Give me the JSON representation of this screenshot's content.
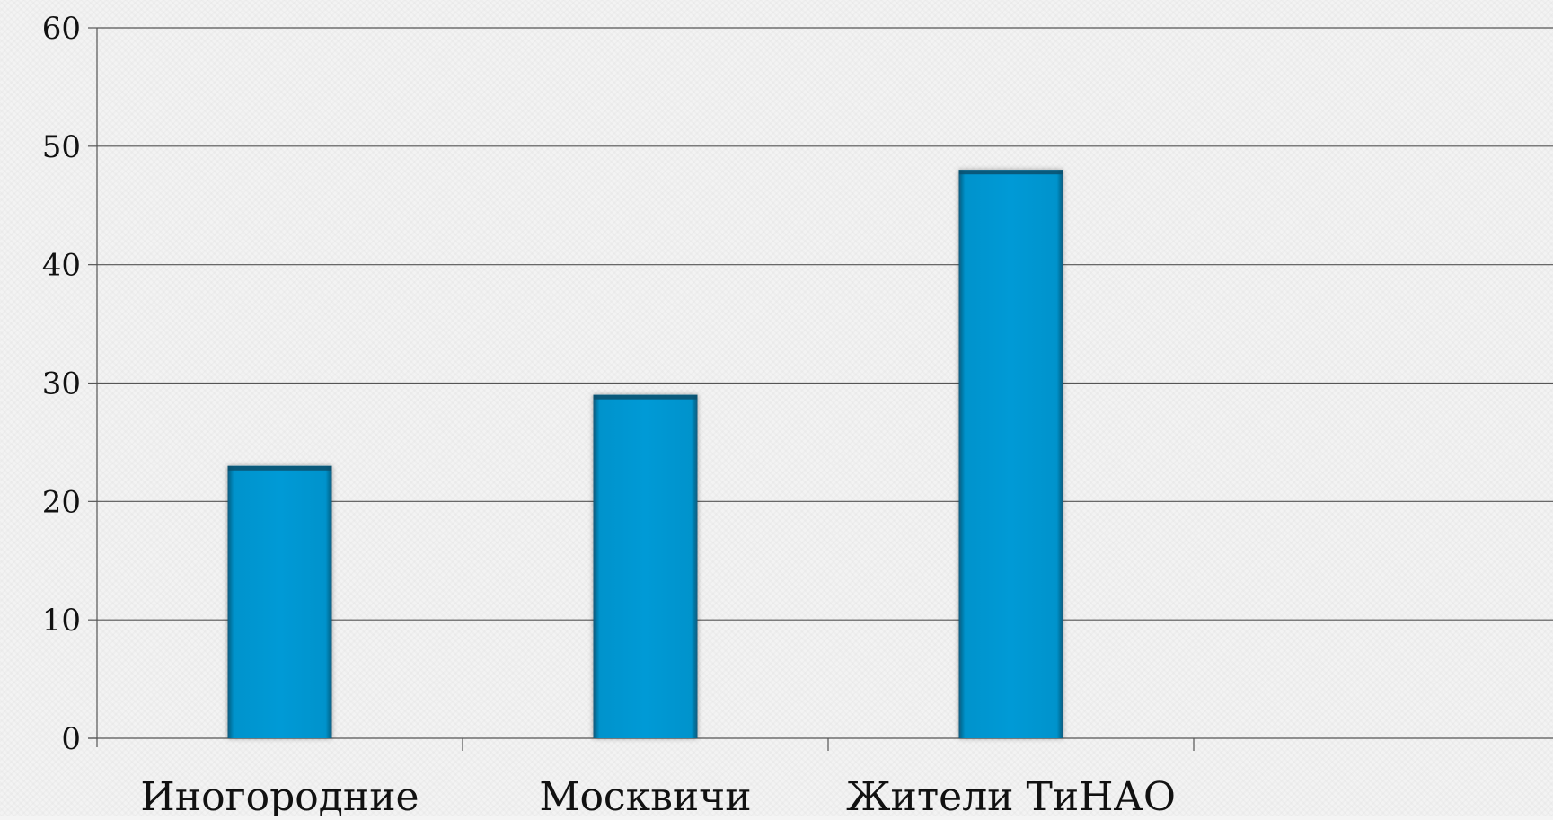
{
  "chart_data": {
    "type": "bar",
    "title": "",
    "xlabel": "",
    "ylabel": "",
    "categories": [
      "Иногородние",
      "Москвичи",
      "Жители ТиНАО"
    ],
    "values": [
      23,
      29,
      48
    ],
    "ylim": [
      0,
      60
    ],
    "yticks": [
      0,
      10,
      20,
      30,
      40,
      50,
      60
    ],
    "ytick_labels": [
      "0",
      "10",
      "20",
      "30",
      "40",
      "50",
      "60"
    ],
    "x_slots": 4,
    "grid": true,
    "legend": "none",
    "colors": {
      "bar": "#009ad6",
      "bar_shadow": "#0b4f6c",
      "grid": "#555555",
      "axis": "#555555",
      "text": "#111111"
    }
  }
}
